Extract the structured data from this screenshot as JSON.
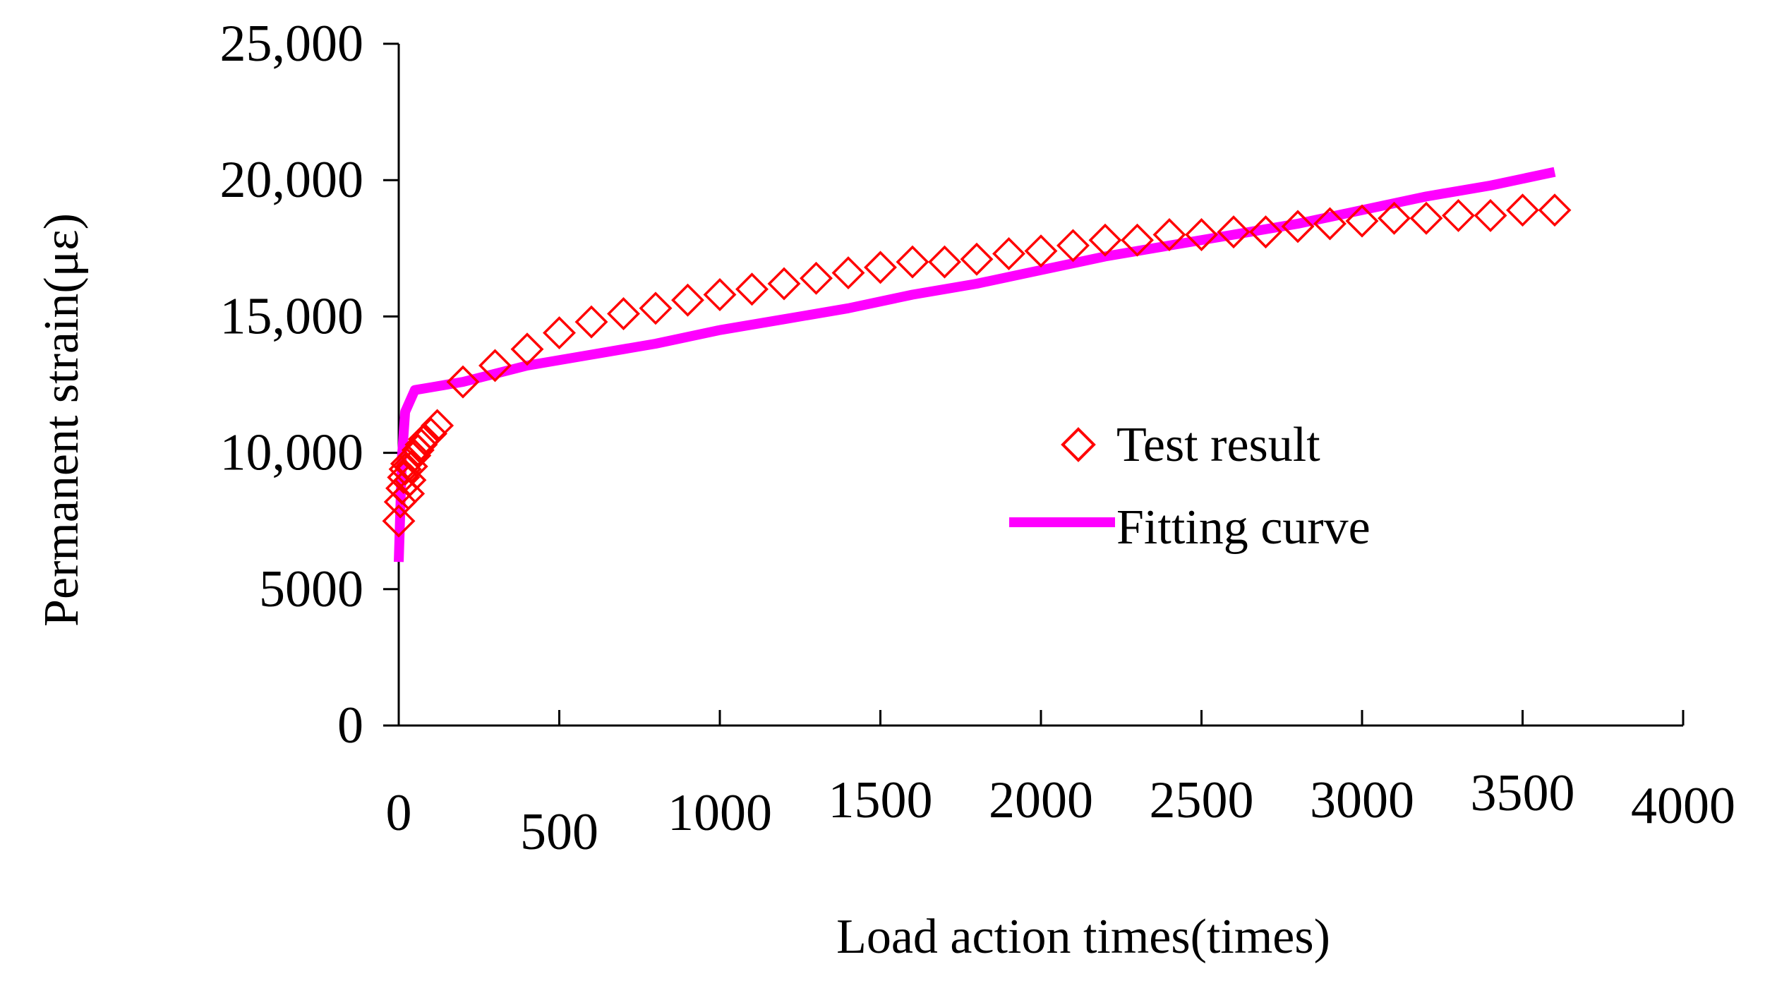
{
  "chart_data": {
    "type": "scatter",
    "title": "",
    "xlabel": "Load action times(times)",
    "ylabel": "Permanent strain(με)",
    "xlim": [
      0,
      4000
    ],
    "ylim": [
      0,
      25000
    ],
    "x_ticks": [
      "0",
      "500",
      "1000",
      "1500",
      "2000",
      "2500",
      "3000",
      "3500",
      "4000"
    ],
    "y_ticks": [
      "0",
      "5000",
      "10,000",
      "15,000",
      "20,000",
      "25,000"
    ],
    "legend_position": "center-right",
    "series": [
      {
        "name": "Test result",
        "kind": "scatter",
        "marker": "diamond",
        "color": "#ff0000",
        "points": [
          [
            0,
            7500
          ],
          [
            5,
            8200
          ],
          [
            10,
            8700
          ],
          [
            15,
            9100
          ],
          [
            20,
            9400
          ],
          [
            25,
            9600
          ],
          [
            30,
            8500
          ],
          [
            35,
            9000
          ],
          [
            40,
            9500
          ],
          [
            50,
            9900
          ],
          [
            60,
            10100
          ],
          [
            70,
            10300
          ],
          [
            80,
            10500
          ],
          [
            100,
            10700
          ],
          [
            120,
            11000
          ],
          [
            200,
            12600
          ],
          [
            300,
            13200
          ],
          [
            400,
            13800
          ],
          [
            500,
            14400
          ],
          [
            600,
            14800
          ],
          [
            700,
            15100
          ],
          [
            800,
            15300
          ],
          [
            900,
            15600
          ],
          [
            1000,
            15800
          ],
          [
            1100,
            16000
          ],
          [
            1200,
            16200
          ],
          [
            1300,
            16400
          ],
          [
            1400,
            16600
          ],
          [
            1500,
            16800
          ],
          [
            1600,
            17000
          ],
          [
            1700,
            17000
          ],
          [
            1800,
            17100
          ],
          [
            1900,
            17300
          ],
          [
            2000,
            17400
          ],
          [
            2100,
            17600
          ],
          [
            2200,
            17800
          ],
          [
            2300,
            17800
          ],
          [
            2400,
            18000
          ],
          [
            2500,
            18000
          ],
          [
            2600,
            18100
          ],
          [
            2700,
            18100
          ],
          [
            2800,
            18300
          ],
          [
            2900,
            18400
          ],
          [
            3000,
            18500
          ],
          [
            3100,
            18600
          ],
          [
            3200,
            18600
          ],
          [
            3300,
            18700
          ],
          [
            3400,
            18700
          ],
          [
            3500,
            18900
          ],
          [
            3600,
            18900
          ]
        ]
      },
      {
        "name": "Fitting curve",
        "kind": "line",
        "color": "#ff00ff",
        "points": [
          [
            0,
            6000
          ],
          [
            10,
            9800
          ],
          [
            20,
            11500
          ],
          [
            50,
            12300
          ],
          [
            100,
            12400
          ],
          [
            200,
            12600
          ],
          [
            400,
            13200
          ],
          [
            600,
            13600
          ],
          [
            800,
            14000
          ],
          [
            1000,
            14500
          ],
          [
            1200,
            14900
          ],
          [
            1400,
            15300
          ],
          [
            1600,
            15800
          ],
          [
            1800,
            16200
          ],
          [
            2000,
            16700
          ],
          [
            2200,
            17200
          ],
          [
            2400,
            17600
          ],
          [
            2600,
            18000
          ],
          [
            2800,
            18400
          ],
          [
            3000,
            18900
          ],
          [
            3200,
            19400
          ],
          [
            3400,
            19800
          ],
          [
            3600,
            20300
          ]
        ]
      }
    ]
  }
}
